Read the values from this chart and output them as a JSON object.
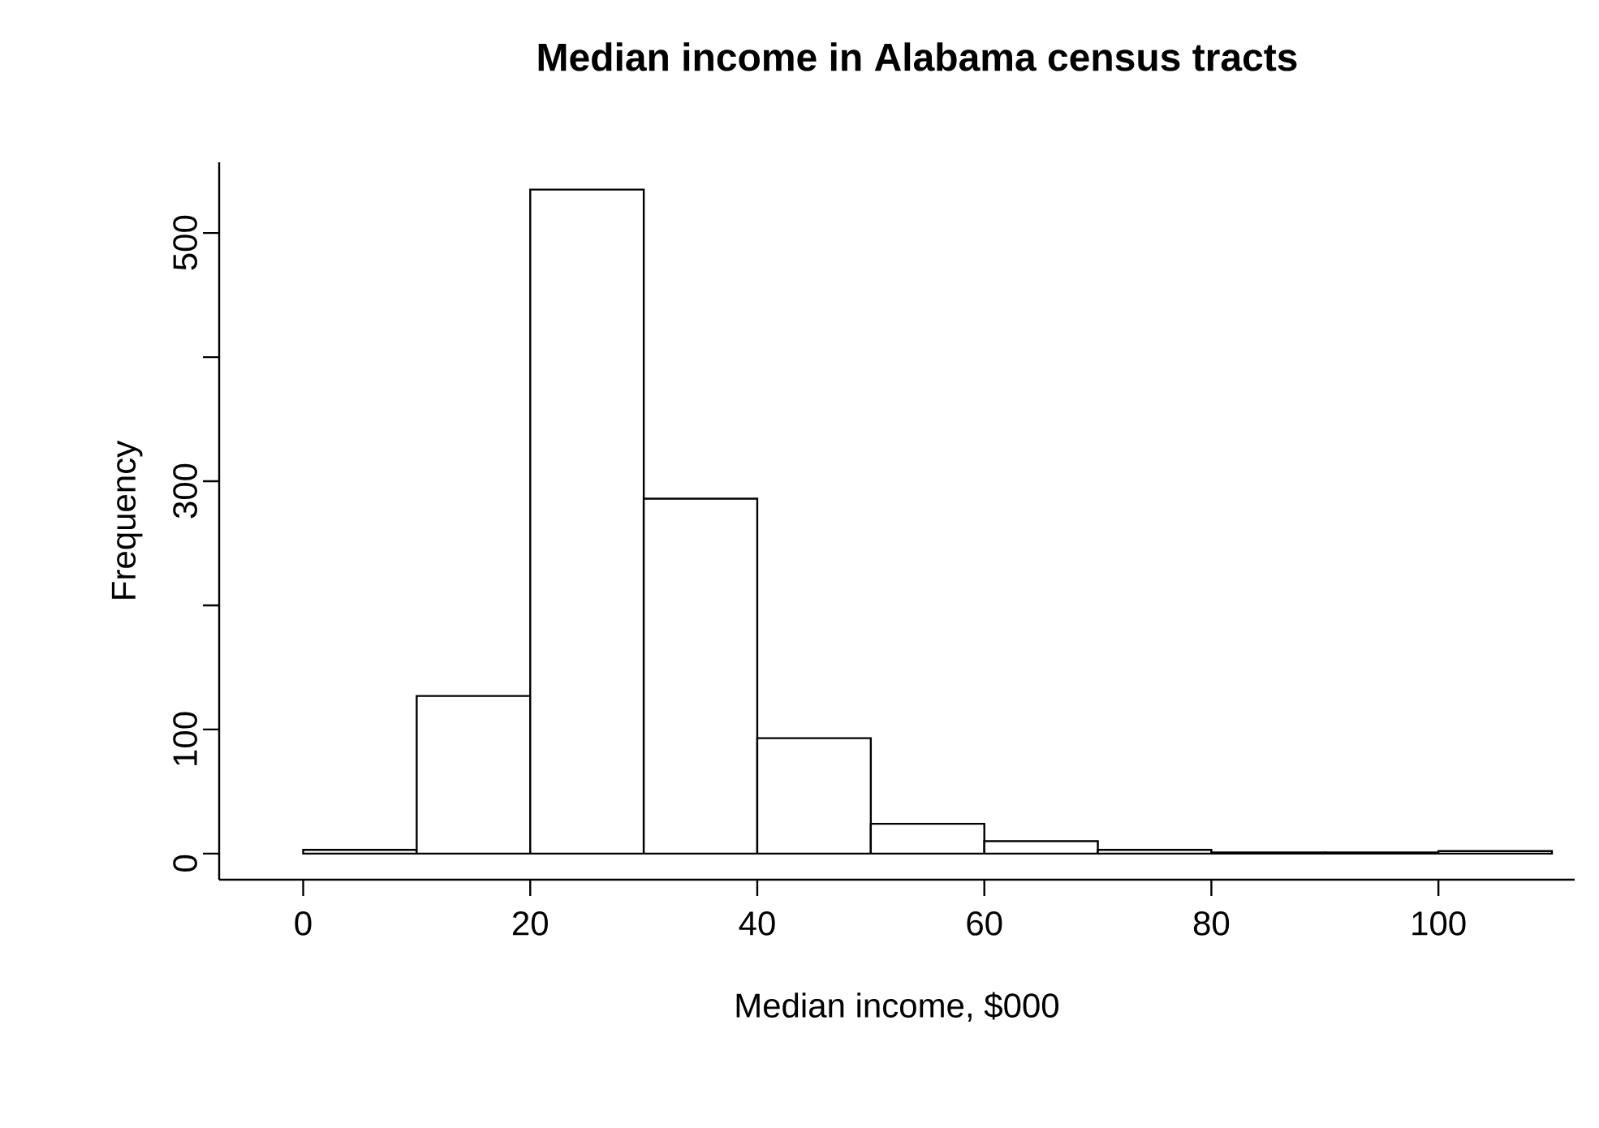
{
  "chart_data": {
    "type": "histogram",
    "title": "Median income in Alabama census tracts",
    "xlabel": "Median income, $000",
    "ylabel": "Frequency",
    "bins": [
      0,
      10,
      20,
      30,
      40,
      50,
      60,
      70,
      80,
      90,
      100,
      110
    ],
    "values": [
      3,
      127,
      535,
      286,
      93,
      24,
      10,
      3,
      1,
      1,
      2
    ],
    "color": "#ffffff",
    "xlim": [
      -7.4,
      112
    ],
    "ylim": [
      -21,
      557
    ],
    "xticks": [
      0,
      20,
      40,
      60,
      80,
      100
    ],
    "yticks": [
      0,
      100,
      {
        "value": 200,
        "label": null
      },
      300,
      {
        "value": 400,
        "label": null
      },
      500
    ],
    "grid": false
  }
}
